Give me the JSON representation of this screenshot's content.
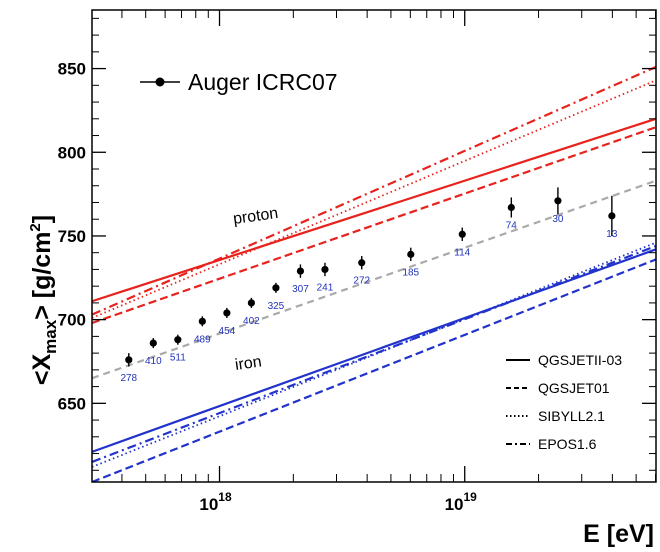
{
  "chart_data": {
    "type": "scatter",
    "title": "",
    "xlabel": "E [eV]",
    "ylabel": "<X_max> [g/cm^2]",
    "ylabel_parts": {
      "open": "<X",
      "sub": "max",
      "mid": "> [g/cm",
      "sup": "2",
      "close": "]"
    },
    "x_scale": "log",
    "xlim_log10": [
      17.48,
      19.78
    ],
    "ylim": [
      603,
      885
    ],
    "x_ticks": [
      {
        "log10": 18,
        "base": "10",
        "exp": "18"
      },
      {
        "log10": 19,
        "base": "10",
        "exp": "19"
      }
    ],
    "y_ticks": [
      650,
      700,
      750,
      800,
      850
    ],
    "data_series": {
      "name": "Auger ICRC07",
      "points": [
        {
          "log10E": 17.63,
          "y": 676,
          "err": 4,
          "n": "278"
        },
        {
          "log10E": 17.73,
          "y": 686,
          "err": 3,
          "n": "410"
        },
        {
          "log10E": 17.83,
          "y": 688,
          "err": 3,
          "n": "511"
        },
        {
          "log10E": 17.93,
          "y": 699,
          "err": 3,
          "n": "489"
        },
        {
          "log10E": 18.03,
          "y": 704,
          "err": 3,
          "n": "454"
        },
        {
          "log10E": 18.13,
          "y": 710,
          "err": 3,
          "n": "402"
        },
        {
          "log10E": 18.23,
          "y": 719,
          "err": 3,
          "n": "325"
        },
        {
          "log10E": 18.33,
          "y": 729,
          "err": 4,
          "n": "307"
        },
        {
          "log10E": 18.43,
          "y": 730,
          "err": 4,
          "n": "241"
        },
        {
          "log10E": 18.58,
          "y": 734,
          "err": 4,
          "n": "272"
        },
        {
          "log10E": 18.78,
          "y": 739,
          "err": 4,
          "n": "185"
        },
        {
          "log10E": 18.99,
          "y": 751,
          "err": 4,
          "n": "114"
        },
        {
          "log10E": 19.19,
          "y": 767,
          "err": 6,
          "n": "74"
        },
        {
          "log10E": 19.38,
          "y": 771,
          "err": 8,
          "n": "30"
        },
        {
          "log10E": 19.6,
          "y": 762,
          "err": 12,
          "n": "13"
        }
      ]
    },
    "trend_line": {
      "points": [
        [
          17.48,
          665
        ],
        [
          19.78,
          783
        ]
      ],
      "color": "#aaaaaa",
      "style": "dashed"
    },
    "model_lines": [
      {
        "model": "QGSJETII-03",
        "primary": "proton",
        "style": "solid",
        "points": [
          [
            17.48,
            711
          ],
          [
            19.78,
            820
          ]
        ]
      },
      {
        "model": "QGSJET01",
        "primary": "proton",
        "style": "dashed",
        "points": [
          [
            17.48,
            698
          ],
          [
            19.78,
            815
          ]
        ]
      },
      {
        "model": "SIBYLL2.1",
        "primary": "proton",
        "style": "dotted",
        "points": [
          [
            17.48,
            701
          ],
          [
            19.78,
            843
          ]
        ]
      },
      {
        "model": "EPOS1.6",
        "primary": "proton",
        "style": "dashdot",
        "points": [
          [
            17.48,
            703
          ],
          [
            19.78,
            851
          ]
        ]
      },
      {
        "model": "QGSJETII-03",
        "primary": "iron",
        "style": "solid",
        "points": [
          [
            17.48,
            621
          ],
          [
            19.78,
            742
          ]
        ]
      },
      {
        "model": "QGSJET01",
        "primary": "iron",
        "style": "dashed",
        "points": [
          [
            17.48,
            603
          ],
          [
            19.78,
            736
          ]
        ]
      },
      {
        "model": "SIBYLL2.1",
        "primary": "iron",
        "style": "dotted",
        "points": [
          [
            17.48,
            612
          ],
          [
            19.78,
            746
          ]
        ]
      },
      {
        "model": "EPOS1.6",
        "primary": "iron",
        "style": "dashdot",
        "points": [
          [
            17.48,
            615
          ],
          [
            19.78,
            744
          ]
        ]
      }
    ],
    "colors": {
      "proton": "#e8221c",
      "iron": "#2233cc",
      "trend": "#aaaaaa",
      "counts": "#2233bb"
    },
    "annotations": [
      {
        "text": "proton",
        "at": [
          18.15,
          759
        ],
        "angle_deg": -8
      },
      {
        "text": "iron",
        "at": [
          18.12,
          671
        ],
        "angle_deg": -8
      }
    ],
    "legend": {
      "placement": "bottom-right",
      "entries": [
        {
          "label": "QGSJETII-03",
          "style": "solid"
        },
        {
          "label": "QGSJET01",
          "style": "dashed"
        },
        {
          "label": "SIBYLL2.1",
          "style": "dotted"
        },
        {
          "label": "EPOS1.6",
          "style": "dashdot"
        }
      ]
    },
    "data_legend": {
      "placement": "top-left",
      "label": "Auger ICRC07"
    }
  }
}
